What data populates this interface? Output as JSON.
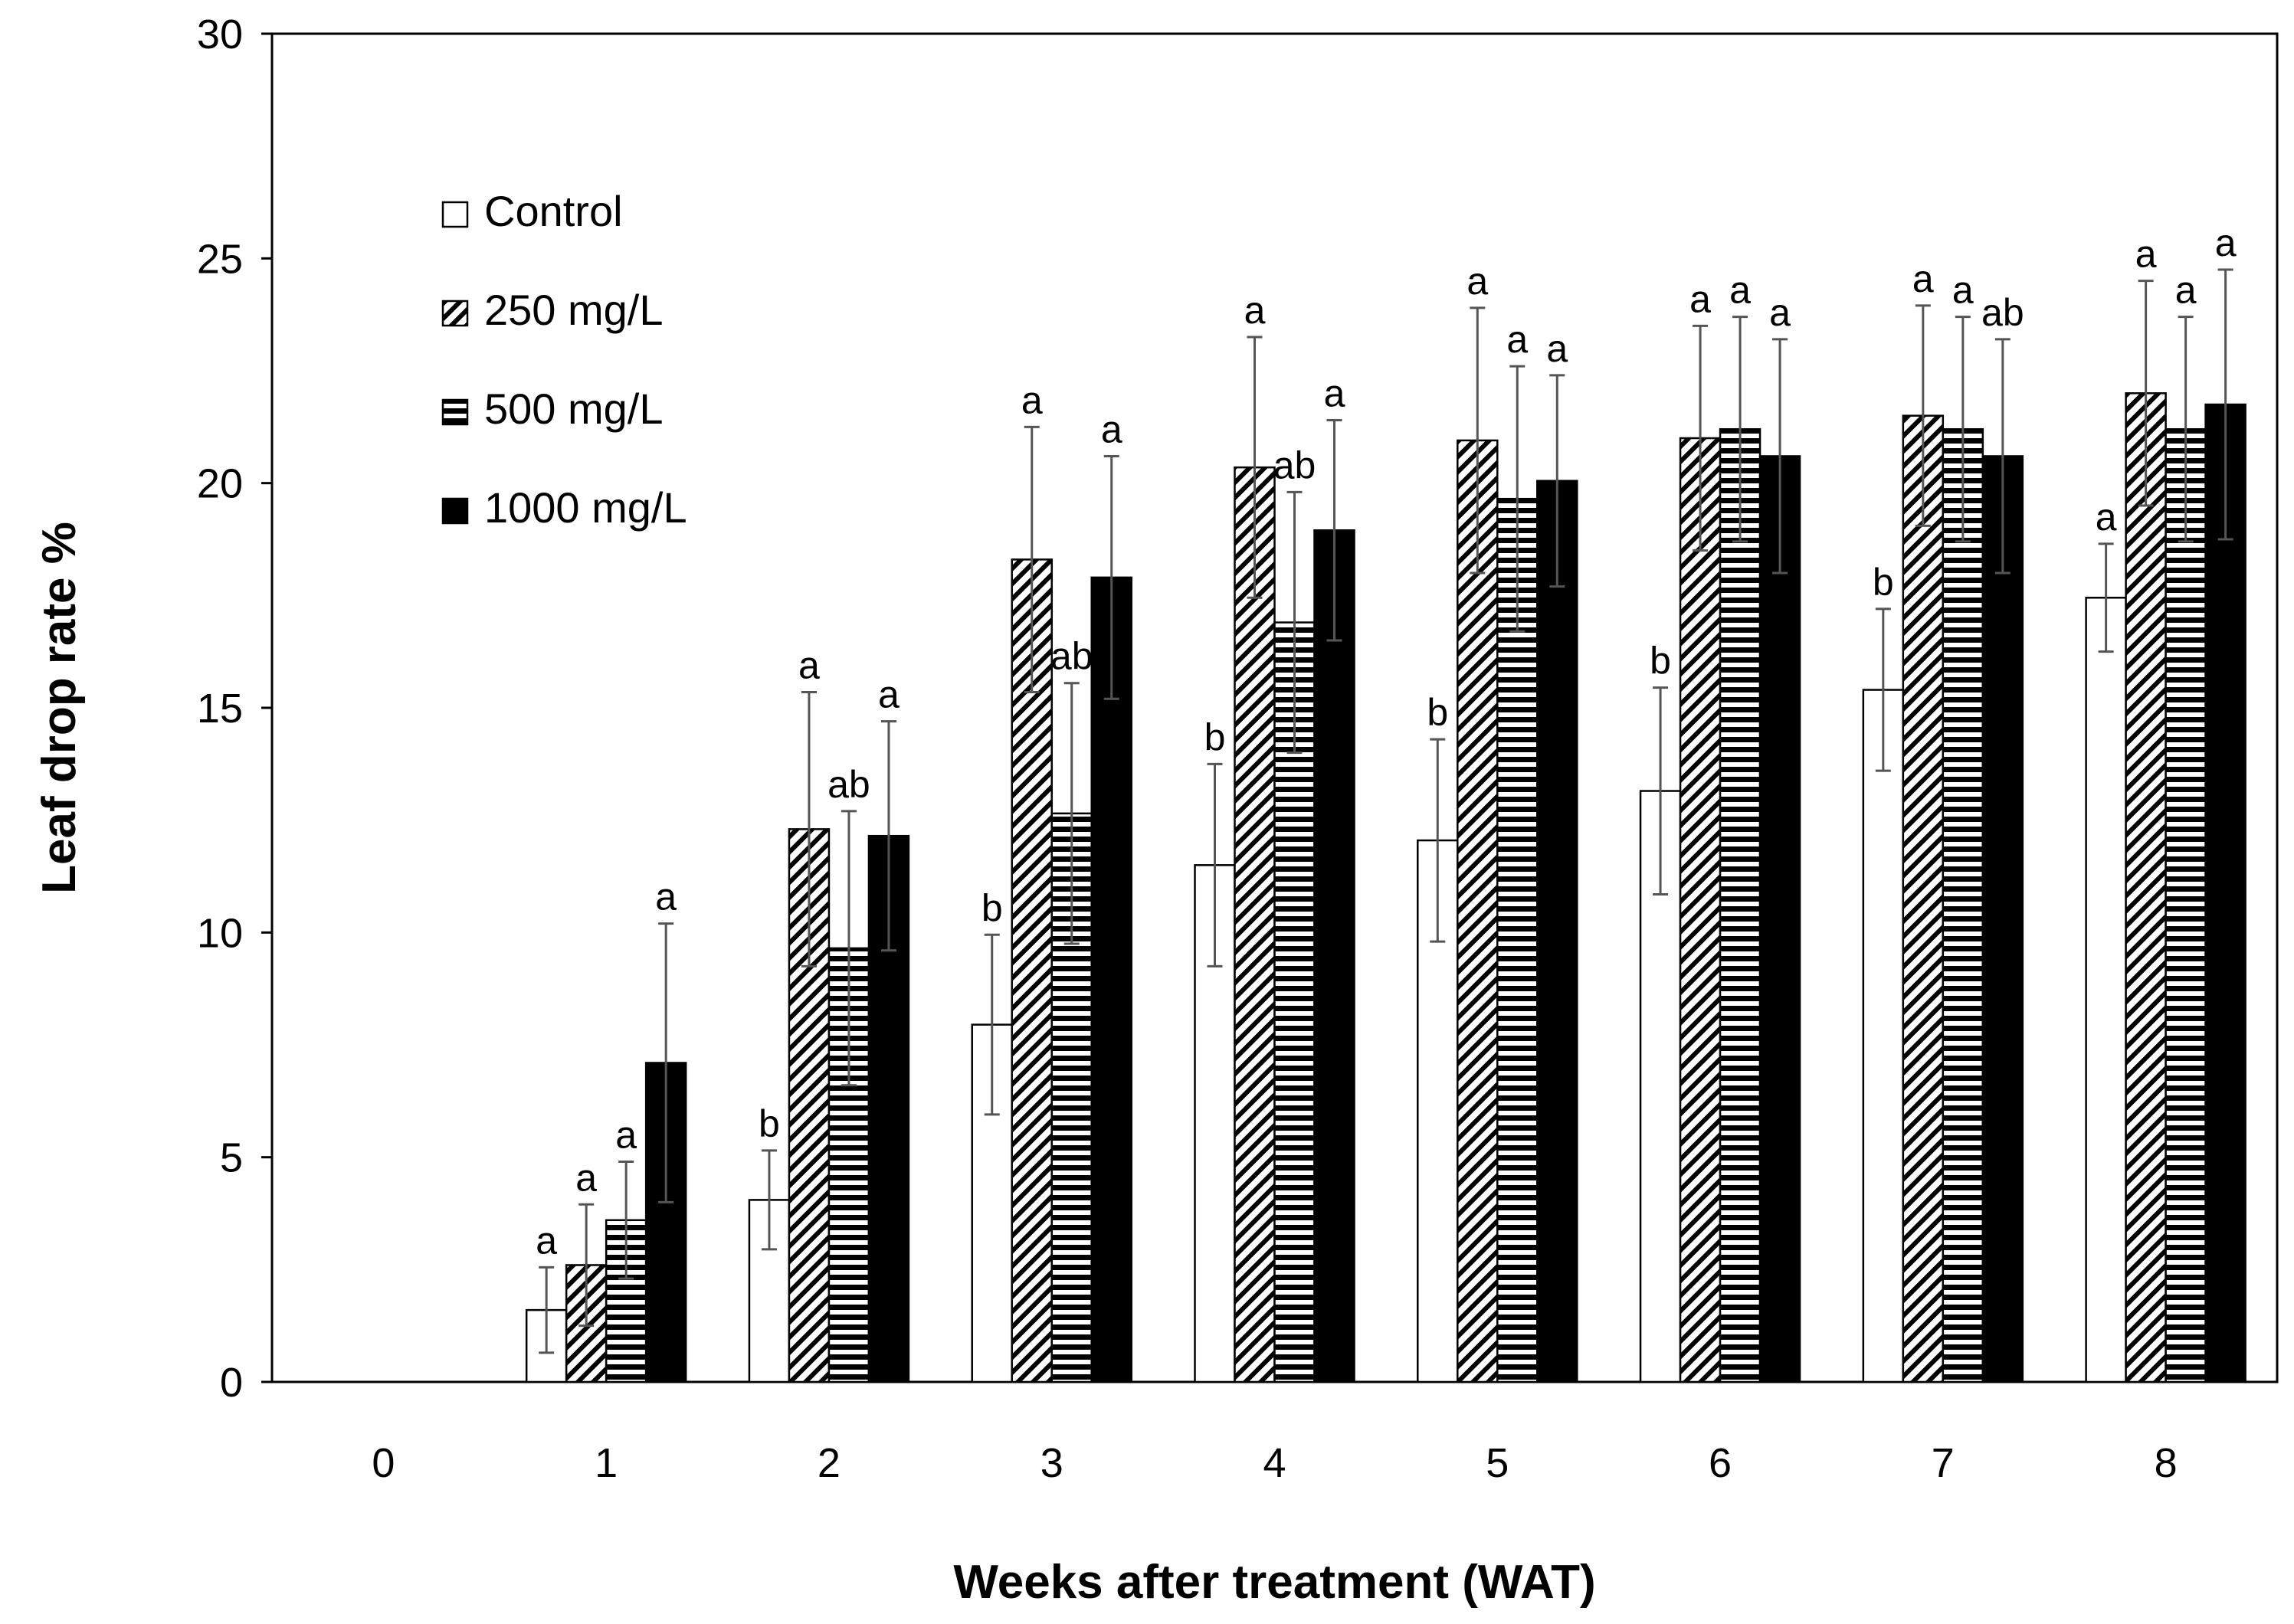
{
  "chart_data": {
    "type": "bar",
    "xlabel": "Weeks after treatment (WAT)",
    "ylabel": "Leaf drop rate %",
    "ylim": [
      0,
      30
    ],
    "yticks": [
      0,
      5,
      10,
      15,
      20,
      25,
      30
    ],
    "categories": [
      "0",
      "1",
      "2",
      "3",
      "4",
      "5",
      "6",
      "7",
      "8"
    ],
    "grid": false,
    "legend_position": "top-left",
    "series": [
      {
        "name": "Control",
        "pattern": "empty-icon",
        "values": [
          0,
          1.6,
          4.05,
          7.95,
          11.5,
          12.05,
          13.15,
          15.4,
          17.45
        ],
        "errors": [
          0,
          0.95,
          1.1,
          2.0,
          2.25,
          2.25,
          2.3,
          1.8,
          1.2
        ],
        "labels": [
          "",
          "a",
          "b",
          "b",
          "b",
          "b",
          "b",
          "b",
          "a"
        ]
      },
      {
        "name": "250 mg/L",
        "pattern": "diagonal-hatch-icon",
        "values": [
          0,
          2.6,
          12.3,
          18.3,
          20.35,
          20.95,
          21.0,
          21.5,
          22.0
        ],
        "errors": [
          0,
          1.35,
          3.05,
          2.95,
          2.9,
          2.95,
          2.5,
          2.45,
          2.5
        ],
        "labels": [
          "",
          "a",
          "a",
          "a",
          "a",
          "a",
          "a",
          "a",
          "a"
        ]
      },
      {
        "name": "500 mg/L",
        "pattern": "horizontal-stripes-icon",
        "values": [
          0,
          3.6,
          9.65,
          12.65,
          16.9,
          19.65,
          21.2,
          21.2,
          21.2
        ],
        "errors": [
          0,
          1.3,
          3.05,
          2.9,
          2.9,
          2.95,
          2.5,
          2.5,
          2.5
        ],
        "labels": [
          "",
          "a",
          "ab",
          "ab",
          "ab",
          "a",
          "a",
          "a",
          "a"
        ]
      },
      {
        "name": "1000 mg/L",
        "pattern": "solid-black-icon",
        "values": [
          0,
          7.1,
          12.15,
          17.9,
          18.95,
          20.05,
          20.6,
          20.6,
          21.75
        ],
        "errors": [
          0,
          3.1,
          2.55,
          2.7,
          2.45,
          2.35,
          2.6,
          2.6,
          3.0
        ],
        "labels": [
          "",
          "a",
          "a",
          "a",
          "a",
          "a",
          "a",
          "ab",
          "a"
        ]
      }
    ]
  }
}
